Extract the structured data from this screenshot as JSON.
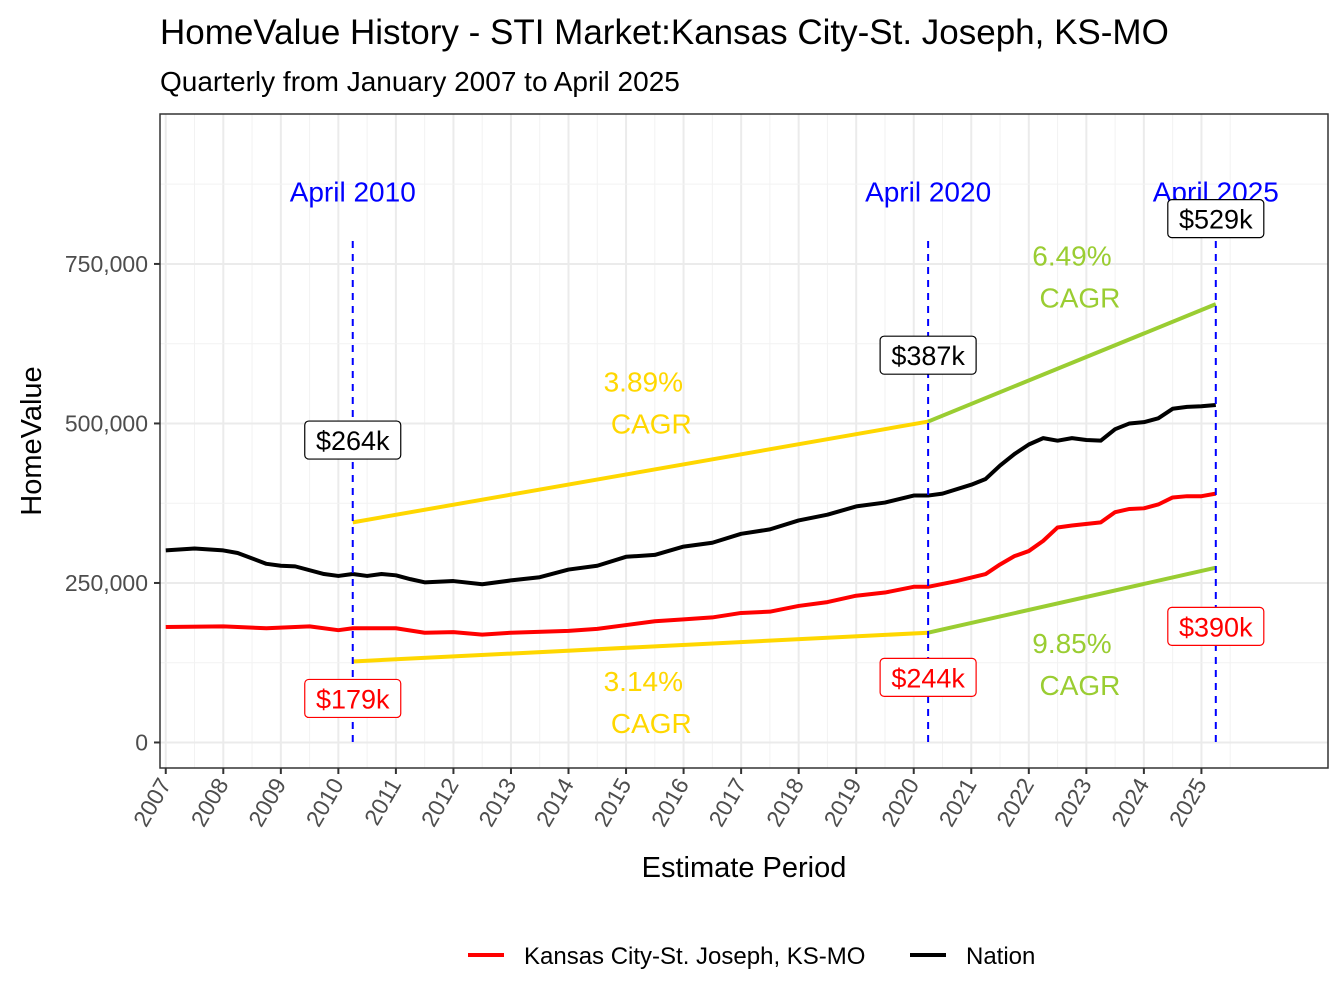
{
  "chart_data": {
    "type": "line",
    "title": "HomeValue History - STI Market:Kansas City-St. Joseph, KS-MO",
    "subtitle": "Quarterly from January 2007 to April 2025",
    "xlabel": "Estimate Period",
    "ylabel": "HomeValue",
    "xlim": [
      2006.9,
      2027.2
    ],
    "ylim": [
      -40000,
      985000
    ],
    "x_ticks": [
      "2007",
      "2008",
      "2009",
      "2010",
      "2011",
      "2012",
      "2013",
      "2014",
      "2015",
      "2016",
      "2017",
      "2018",
      "2019",
      "2020",
      "2021",
      "2022",
      "2023",
      "2024",
      "2025"
    ],
    "y_ticks": [
      {
        "value": 0,
        "label": "0"
      },
      {
        "value": 250000,
        "label": "250,000"
      },
      {
        "value": 500000,
        "label": "500,000"
      },
      {
        "value": 750000,
        "label": "750,000"
      }
    ],
    "grid": true,
    "legend_position": "bottom",
    "series": [
      {
        "name": "Kansas City-St. Joseph, KS-MO",
        "color": "#FF0000",
        "x": [
          2007,
          2008,
          2008.75,
          2009.5,
          2010,
          2010.25,
          2011,
          2011.5,
          2012,
          2012.5,
          2013,
          2014,
          2014.5,
          2015,
          2015.5,
          2016,
          2016.5,
          2017,
          2017.5,
          2018,
          2018.5,
          2019,
          2019.5,
          2020,
          2020.25,
          2020.75,
          2021.25,
          2021.5,
          2021.75,
          2022,
          2022.25,
          2022.5,
          2022.75,
          2023.25,
          2023.5,
          2023.75,
          2024,
          2024.25,
          2024.5,
          2024.75,
          2025,
          2025.25
        ],
        "y": [
          181000,
          182000,
          179000,
          182000,
          176000,
          179000,
          179000,
          172000,
          173000,
          169000,
          172000,
          175000,
          178000,
          184000,
          190000,
          193000,
          196000,
          203000,
          205000,
          214000,
          220000,
          230000,
          235000,
          244000,
          244000,
          253000,
          264000,
          279000,
          292000,
          300000,
          316000,
          337000,
          340000,
          345000,
          361000,
          366000,
          367000,
          373000,
          384000,
          386000,
          386000,
          390000
        ]
      },
      {
        "name": "Nation",
        "color": "#000000",
        "x": [
          2007,
          2007.5,
          2008,
          2008.25,
          2008.75,
          2009,
          2009.25,
          2009.75,
          2010,
          2010.25,
          2010.5,
          2010.75,
          2011,
          2011.25,
          2011.5,
          2012,
          2012.5,
          2013,
          2013.5,
          2014,
          2014.5,
          2015,
          2015.5,
          2016,
          2016.5,
          2017,
          2017.5,
          2018,
          2018.5,
          2019,
          2019.5,
          2020,
          2020.25,
          2020.5,
          2021,
          2021.25,
          2021.5,
          2021.75,
          2022,
          2022.25,
          2022.5,
          2022.75,
          2023,
          2023.25,
          2023.5,
          2023.75,
          2024,
          2024.25,
          2024.5,
          2024.75,
          2025,
          2025.25
        ],
        "y": [
          301000,
          304000,
          301000,
          297000,
          280000,
          277000,
          276000,
          264000,
          261000,
          264000,
          261000,
          264000,
          262000,
          256000,
          251000,
          253000,
          248000,
          254000,
          259000,
          271000,
          277000,
          291000,
          294000,
          307000,
          313000,
          327000,
          334000,
          348000,
          357000,
          370000,
          376000,
          387000,
          387000,
          390000,
          404000,
          413000,
          434000,
          452000,
          467000,
          477000,
          473000,
          477000,
          474000,
          473000,
          491000,
          500000,
          502000,
          508000,
          523000,
          526000,
          527000,
          529000
        ]
      }
    ],
    "cagr_lines": [
      {
        "color": "#FFD700",
        "x": [
          2010.25,
          2020.25
        ],
        "y": [
          345000,
          503000
        ]
      },
      {
        "color": "#9ACD32",
        "x": [
          2020.25,
          2025.25
        ],
        "y": [
          503000,
          687000
        ]
      },
      {
        "color": "#FFD700",
        "x": [
          2010.25,
          2020.25
        ],
        "y": [
          127000,
          172000
        ]
      },
      {
        "color": "#9ACD32",
        "x": [
          2020.25,
          2025.25
        ],
        "y": [
          172000,
          274000
        ]
      }
    ],
    "vlines": [
      {
        "x": 2010.25,
        "label": "April 2010"
      },
      {
        "x": 2020.25,
        "label": "April 2020"
      },
      {
        "x": 2025.25,
        "label": "April 2025"
      }
    ],
    "vline_color": "#0000FF",
    "value_labels": [
      {
        "x": 2010.25,
        "y": 474000,
        "text": "$264k",
        "color": "#000000"
      },
      {
        "x": 2020.25,
        "y": 607000,
        "text": "$387k",
        "color": "#000000"
      },
      {
        "x": 2025.25,
        "y": 821000,
        "text": "$529k",
        "color": "#000000"
      },
      {
        "x": 2010.25,
        "y": 69000,
        "text": "$179k",
        "color": "#FF0000"
      },
      {
        "x": 2020.25,
        "y": 102000,
        "text": "$244k",
        "color": "#FF0000"
      },
      {
        "x": 2025.25,
        "y": 182000,
        "text": "$390k",
        "color": "#FF0000"
      }
    ],
    "cagr_labels": [
      {
        "x": 2015.3,
        "y": 566000,
        "pct": "3.89%",
        "word": "CAGR",
        "color": "#FFD700"
      },
      {
        "x": 2022.75,
        "y": 763000,
        "pct": "6.49%",
        "word": "CAGR",
        "color": "#9ACD32"
      },
      {
        "x": 2015.3,
        "y": 96000,
        "pct": "3.14%",
        "word": "CAGR",
        "color": "#FFD700"
      },
      {
        "x": 2022.75,
        "y": 156000,
        "pct": "9.85%",
        "word": "CAGR",
        "color": "#9ACD32"
      }
    ]
  }
}
